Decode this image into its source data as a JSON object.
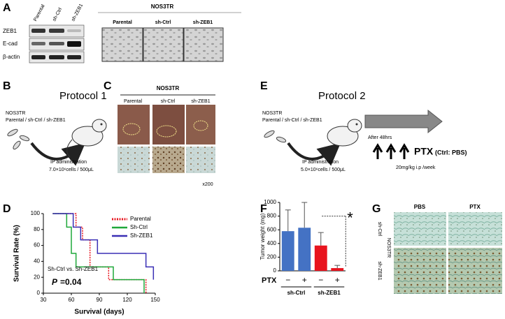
{
  "panel_letters": [
    "A",
    "B",
    "C",
    "D",
    "E",
    "F",
    "G"
  ],
  "panel_a": {
    "lanes": [
      "Parental",
      "sh-Ctrl",
      "sh-ZEB1"
    ],
    "bands": [
      "ZEB1",
      "E-cad",
      "β-actin"
    ],
    "title": "NOS3TR",
    "image_labels": [
      "Parental",
      "sh-Ctrl",
      "sh-ZEB1"
    ]
  },
  "panel_b": {
    "title": "Protocol 1",
    "cell_line": "NOS3TR",
    "groups": "Parental / sh-Ctrl / sh-ZEB1",
    "route": "IP administration",
    "dose": "7.0×10⁶cells / 500μL"
  },
  "panel_c": {
    "title": "NOS3TR",
    "labels": [
      "Parental",
      "sh-Ctrl",
      "sh-ZEB1"
    ],
    "magnification": "x200"
  },
  "panel_e": {
    "title": "Protocol 2",
    "cell_line": "NOS3TR",
    "groups": "Parental / sh-Ctrl / sh-ZEB1",
    "route": "IP administration",
    "dose": "5.0×10⁶cells / 500μL",
    "timing": "After 48hrs",
    "drug": "PTX",
    "control": "(Ctrl: PBS)",
    "regimen": "20mg/kg i.p /week"
  },
  "panel_g": {
    "columns": [
      "PBS",
      "PTX"
    ],
    "rows": [
      "sh-Ctrl",
      "sh-ZEB1"
    ],
    "cell_line": "NOS3TR"
  },
  "chart_data": [
    {
      "type": "line",
      "step": true,
      "ylabel": "Survival Rate (%)",
      "xlabel": "Survival (days)",
      "xlim": [
        30,
        150
      ],
      "ylim": [
        0,
        100
      ],
      "xticks": [
        30,
        60,
        90,
        120,
        150
      ],
      "yticks": [
        0,
        20,
        40,
        60,
        80,
        100
      ],
      "legend": "top-right",
      "annotation": "Sh-Ctrl vs. Sh-ZEB1",
      "p_label": "P",
      "p_value": "=0.04",
      "series": [
        {
          "name": "Parental",
          "color": "#e8141e",
          "line_style": "dotted",
          "x": [
            40,
            65,
            72,
            80,
            100,
            140
          ],
          "values": [
            100,
            83,
            67,
            33,
            17,
            0
          ]
        },
        {
          "name": "Sh-Ctrl",
          "color": "#1fa83a",
          "line_style": "solid",
          "x": [
            40,
            55,
            60,
            65,
            105,
            138
          ],
          "values": [
            100,
            83,
            50,
            33,
            17,
            0
          ]
        },
        {
          "name": "Sh-ZEB1",
          "color": "#3a2fb5",
          "line_style": "solid",
          "x": [
            40,
            62,
            70,
            88,
            140,
            148
          ],
          "values": [
            100,
            83,
            67,
            50,
            33,
            17
          ]
        }
      ]
    },
    {
      "type": "bar",
      "ylabel": "Tumor weight (mg)",
      "ylim": [
        0,
        1000
      ],
      "yticks": [
        0,
        200,
        400,
        600,
        800,
        1000
      ],
      "categories": [
        "−",
        "+",
        "−",
        "+"
      ],
      "x_row_label": "PTX",
      "groups": [
        "sh-Ctrl",
        "sh-ZEB1"
      ],
      "values": [
        580,
        630,
        370,
        40
      ],
      "errors": [
        310,
        370,
        190,
        40
      ],
      "colors": [
        "#4472c4",
        "#4472c4",
        "#e8141e",
        "#e8141e"
      ],
      "significance": "*"
    }
  ]
}
